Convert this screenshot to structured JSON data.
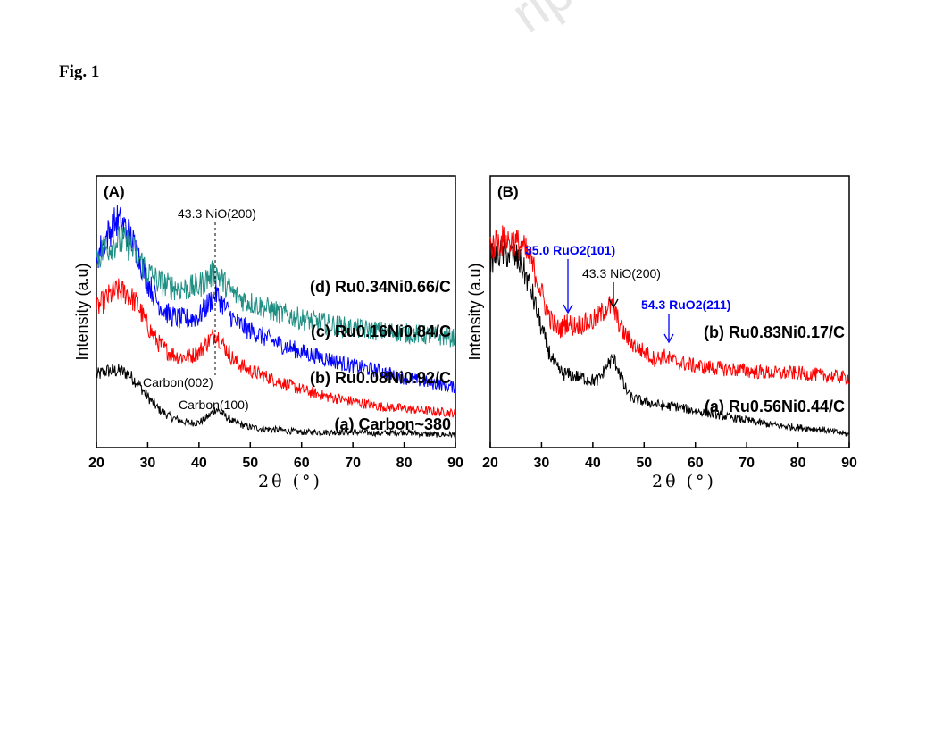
{
  "figure_label": "Fig. 1",
  "watermark": "rip",
  "chart_data": [
    {
      "panel": "(A)",
      "type": "line",
      "xlabel": "2θ (°)",
      "ylabel": "Intensity (a.u)",
      "xlim": [
        20,
        90
      ],
      "xticks": [
        20,
        30,
        40,
        50,
        60,
        70,
        80,
        90
      ],
      "y_ticks_shown": false,
      "series": [
        {
          "name": "(a) Carbon~380",
          "color": "#000000",
          "offset": 0.0,
          "x": [
            20,
            22,
            24,
            26,
            28,
            30,
            32,
            34,
            36,
            38,
            40,
            42,
            43.3,
            45,
            47,
            50,
            55,
            60,
            65,
            70,
            75,
            80,
            85,
            90
          ],
          "y": [
            0.26,
            0.28,
            0.28,
            0.27,
            0.23,
            0.17,
            0.12,
            0.09,
            0.07,
            0.06,
            0.06,
            0.09,
            0.12,
            0.09,
            0.06,
            0.04,
            0.03,
            0.02,
            0.02,
            0.02,
            0.015,
            0.02,
            0.01,
            0.01
          ]
        },
        {
          "name": "(b) Ru0.08Ni0.92/C",
          "color": "#ff0000",
          "offset": 0.0,
          "x": [
            20,
            22,
            24,
            26,
            28,
            30,
            32,
            34,
            36,
            38,
            40,
            42,
            43.3,
            45,
            47,
            50,
            55,
            60,
            65,
            70,
            75,
            80,
            85,
            90
          ],
          "y": [
            0.54,
            0.59,
            0.62,
            0.61,
            0.56,
            0.47,
            0.4,
            0.36,
            0.34,
            0.34,
            0.36,
            0.41,
            0.44,
            0.38,
            0.32,
            0.28,
            0.24,
            0.2,
            0.17,
            0.15,
            0.13,
            0.12,
            0.11,
            0.1
          ]
        },
        {
          "name": "(c) Ru0.16Ni0.84/C",
          "color": "#0000ff",
          "offset": 0.0,
          "x": [
            20,
            22,
            24,
            26,
            28,
            30,
            32,
            34,
            36,
            38,
            40,
            42,
            43.3,
            45,
            47,
            50,
            55,
            60,
            65,
            70,
            75,
            80,
            85,
            90
          ],
          "y": [
            0.76,
            0.85,
            0.92,
            0.88,
            0.78,
            0.66,
            0.57,
            0.52,
            0.5,
            0.5,
            0.51,
            0.57,
            0.61,
            0.55,
            0.49,
            0.45,
            0.4,
            0.36,
            0.33,
            0.3,
            0.28,
            0.25,
            0.23,
            0.21
          ]
        },
        {
          "name": "(d) Ru0.34Ni0.66/C",
          "color": "#1f8f84",
          "offset": 0.0,
          "x": [
            20,
            22,
            24,
            26,
            28,
            30,
            32,
            34,
            36,
            38,
            40,
            42,
            43.3,
            45,
            47,
            50,
            55,
            60,
            65,
            70,
            75,
            80,
            85,
            90
          ],
          "y": [
            0.76,
            0.8,
            0.83,
            0.82,
            0.77,
            0.7,
            0.66,
            0.64,
            0.63,
            0.63,
            0.64,
            0.68,
            0.7,
            0.65,
            0.6,
            0.57,
            0.53,
            0.5,
            0.48,
            0.46,
            0.45,
            0.44,
            0.43,
            0.42
          ]
        }
      ],
      "annotations": [
        {
          "text": "43.3 NiO(200)",
          "x": 43.3
        },
        {
          "text": "Carbon(002)",
          "x": 28
        },
        {
          "text": "Carbon(100)",
          "x": 43
        }
      ]
    },
    {
      "panel": "(B)",
      "type": "line",
      "xlabel": "2θ (°)",
      "ylabel": "Intensity (a.u)",
      "xlim": [
        20,
        90
      ],
      "xticks": [
        20,
        30,
        40,
        50,
        60,
        70,
        80,
        90
      ],
      "y_ticks_shown": false,
      "series": [
        {
          "name": "(a) Ru0.56Ni0.44/C",
          "color": "#000000",
          "x": [
            20,
            21,
            22,
            23,
            24,
            25,
            26,
            27,
            28,
            29,
            30,
            31,
            32,
            33,
            34,
            36,
            38,
            40,
            41,
            42,
            43,
            44,
            45,
            46,
            47,
            48,
            50,
            52,
            54,
            56,
            58,
            60,
            65,
            70,
            75,
            80,
            85,
            90
          ],
          "y": [
            0.75,
            0.77,
            0.78,
            0.78,
            0.77,
            0.76,
            0.73,
            0.68,
            0.62,
            0.54,
            0.46,
            0.39,
            0.33,
            0.29,
            0.27,
            0.26,
            0.25,
            0.24,
            0.24,
            0.27,
            0.31,
            0.33,
            0.29,
            0.22,
            0.18,
            0.16,
            0.15,
            0.14,
            0.13,
            0.13,
            0.12,
            0.11,
            0.09,
            0.07,
            0.05,
            0.04,
            0.03,
            0.01
          ]
        },
        {
          "name": "(b) Ru0.83Ni0.17/C",
          "color": "#ff0000",
          "x": [
            20,
            21,
            22,
            23,
            24,
            25,
            26,
            27,
            28,
            29,
            30,
            31,
            32,
            33,
            34,
            35,
            36,
            38,
            40,
            42,
            43,
            44,
            45,
            46,
            48,
            50,
            52,
            54,
            56,
            58,
            60,
            65,
            70,
            75,
            80,
            85,
            90
          ],
          "y": [
            0.81,
            0.82,
            0.83,
            0.83,
            0.83,
            0.82,
            0.81,
            0.78,
            0.74,
            0.68,
            0.61,
            0.54,
            0.49,
            0.46,
            0.46,
            0.49,
            0.47,
            0.48,
            0.49,
            0.53,
            0.56,
            0.54,
            0.49,
            0.44,
            0.39,
            0.36,
            0.33,
            0.34,
            0.32,
            0.31,
            0.3,
            0.29,
            0.28,
            0.27,
            0.27,
            0.26,
            0.25
          ]
        }
      ],
      "annotations": [
        {
          "text": "35.0 RuO2(101)",
          "x": 35.0,
          "color": "#0000ff"
        },
        {
          "text": "43.3 NiO(200)",
          "x": 43.3,
          "color": "#000000"
        },
        {
          "text": "54.3 RuO2(211)",
          "x": 54.3,
          "color": "#0000ff"
        }
      ]
    }
  ]
}
